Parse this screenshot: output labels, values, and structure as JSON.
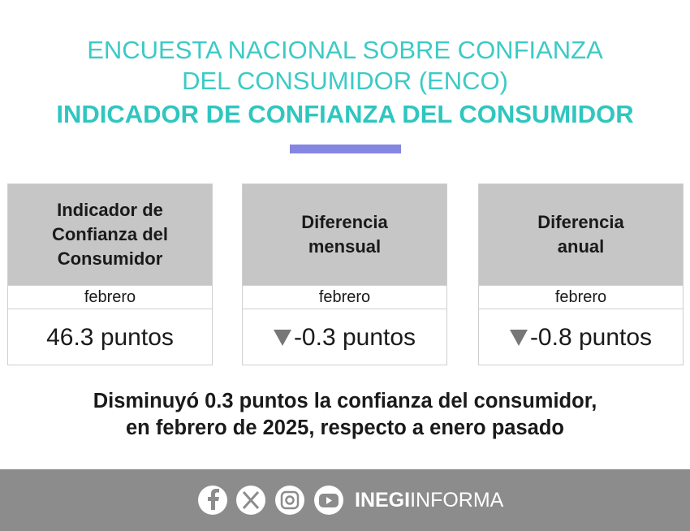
{
  "header": {
    "title_line1": "ENCUESTA NACIONAL SOBRE CONFIANZA",
    "title_line2": "DEL CONSUMIDOR (ENCO)",
    "subtitle": "INDICADOR DE CONFIANZA DEL CONSUMIDOR"
  },
  "cards": [
    {
      "heading": [
        "Indicador de",
        "Confianza del",
        "Consumidor"
      ],
      "period": "febrero",
      "value": "46.3 puntos"
    },
    {
      "heading": [
        "Diferencia",
        "mensual"
      ],
      "period": "febrero",
      "value": "-0.3 puntos"
    },
    {
      "heading": [
        "Diferencia",
        "anual"
      ],
      "period": "febrero",
      "value": "-0.8 puntos"
    }
  ],
  "summary": [
    "Disminuyó 0.3 puntos la confianza del consumidor,",
    "en febrero de 2025, respecto a enero pasado"
  ],
  "footer": {
    "brand_bold": "INEGI",
    "brand_light": "INFORMA"
  }
}
